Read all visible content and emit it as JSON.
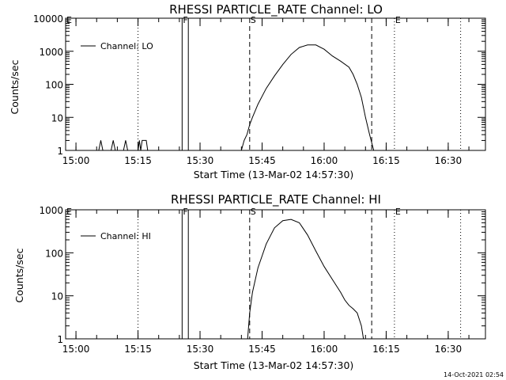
{
  "footer": {
    "timestamp": "14-Oct-2021 02:54"
  },
  "chart_data": [
    {
      "type": "line",
      "title": "RHESSI PARTICLE_RATE Channel: LO",
      "xlabel": "Start Time (13-Mar-02 14:57:30)",
      "ylabel": "Counts/sec",
      "yscale": "log",
      "ylim": [
        1,
        10000
      ],
      "yticks": [
        1,
        10,
        100,
        1000,
        10000
      ],
      "ytick_labels": [
        "1",
        "10",
        "100",
        "1000",
        "10000"
      ],
      "xlim": [
        "14:57:30",
        "16:39:00"
      ],
      "xticks": [
        "15:00",
        "15:15",
        "15:30",
        "15:45",
        "16:00",
        "16:15",
        "16:30"
      ],
      "legend": {
        "label": "Channel: LO",
        "placement": "top-left"
      },
      "markers": [
        {
          "label": "E",
          "time": "14:57:30",
          "style": "dotted"
        },
        {
          "label": "",
          "time": "15:15:00",
          "style": "dotted"
        },
        {
          "label": "F",
          "time": "15:25:40",
          "style": "solid"
        },
        {
          "label": "",
          "time": "15:27:10",
          "style": "solid"
        },
        {
          "label": "S",
          "time": "15:42:00",
          "style": "dashed"
        },
        {
          "label": "",
          "time": "16:11:30",
          "style": "dashed"
        },
        {
          "label": "E",
          "time": "16:17:00",
          "style": "dotted"
        },
        {
          "label": "",
          "time": "16:33:00",
          "style": "dotted"
        }
      ],
      "series": [
        {
          "name": "Channel: LO",
          "points": [
            [
              "15:05:30",
              1
            ],
            [
              "15:06:00",
              2
            ],
            [
              "15:06:30",
              1
            ],
            [
              "15:08:30",
              1
            ],
            [
              "15:09:00",
              2
            ],
            [
              "15:09:30",
              1
            ],
            [
              "15:11:30",
              1
            ],
            [
              "15:12:00",
              2
            ],
            [
              "15:12:30",
              1
            ],
            [
              "15:15:00",
              1
            ],
            [
              "15:15:20",
              2
            ],
            [
              "15:15:40",
              1
            ],
            [
              "15:16:00",
              2
            ],
            [
              "15:17:00",
              2
            ],
            [
              "15:17:20",
              1
            ],
            [
              "15:40:00",
              1
            ],
            [
              "15:40:40",
              2
            ],
            [
              "15:41:20",
              3
            ],
            [
              "15:42:00",
              6
            ],
            [
              "15:42:40",
              10
            ],
            [
              "15:44:00",
              25
            ],
            [
              "15:46:00",
              75
            ],
            [
              "15:48:00",
              180
            ],
            [
              "15:50:00",
              400
            ],
            [
              "15:52:00",
              800
            ],
            [
              "15:54:00",
              1300
            ],
            [
              "15:56:00",
              1550
            ],
            [
              "15:58:00",
              1550
            ],
            [
              "16:00:00",
              1150
            ],
            [
              "16:02:00",
              720
            ],
            [
              "16:04:00",
              500
            ],
            [
              "16:06:00",
              330
            ],
            [
              "16:07:00",
              200
            ],
            [
              "16:08:00",
              100
            ],
            [
              "16:09:00",
              40
            ],
            [
              "16:10:00",
              10
            ],
            [
              "16:11:00",
              3
            ],
            [
              "16:12:00",
              1
            ]
          ]
        }
      ]
    },
    {
      "type": "line",
      "title": "RHESSI PARTICLE_RATE Channel: HI",
      "xlabel": "Start Time (13-Mar-02 14:57:30)",
      "ylabel": "Counts/sec",
      "yscale": "log",
      "ylim": [
        1,
        1000
      ],
      "yticks": [
        1,
        10,
        100,
        1000
      ],
      "ytick_labels": [
        "1",
        "10",
        "100",
        "1000"
      ],
      "xlim": [
        "14:57:30",
        "16:39:00"
      ],
      "xticks": [
        "15:00",
        "15:15",
        "15:30",
        "15:45",
        "16:00",
        "16:15",
        "16:30"
      ],
      "legend": {
        "label": "Channel: HI",
        "placement": "top-left"
      },
      "markers": [
        {
          "label": "E",
          "time": "14:57:30",
          "style": "dotted"
        },
        {
          "label": "",
          "time": "15:15:00",
          "style": "dotted"
        },
        {
          "label": "F",
          "time": "15:25:40",
          "style": "solid"
        },
        {
          "label": "",
          "time": "15:27:10",
          "style": "solid"
        },
        {
          "label": "S",
          "time": "15:42:00",
          "style": "dashed"
        },
        {
          "label": "",
          "time": "16:11:30",
          "style": "dashed"
        },
        {
          "label": "E",
          "time": "16:17:00",
          "style": "dotted"
        },
        {
          "label": "",
          "time": "16:33:00",
          "style": "dotted"
        }
      ],
      "series": [
        {
          "name": "Channel: HI",
          "points": [
            [
              "15:41:30",
              1
            ],
            [
              "15:42:00",
              4
            ],
            [
              "15:42:40",
              12
            ],
            [
              "15:44:00",
              45
            ],
            [
              "15:46:00",
              160
            ],
            [
              "15:48:00",
              380
            ],
            [
              "15:50:00",
              560
            ],
            [
              "15:52:00",
              600
            ],
            [
              "15:54:00",
              500
            ],
            [
              "15:56:00",
              260
            ],
            [
              "15:58:00",
              110
            ],
            [
              "16:00:00",
              48
            ],
            [
              "16:02:00",
              24
            ],
            [
              "16:04:00",
              12
            ],
            [
              "16:05:00",
              8
            ],
            [
              "16:06:00",
              6
            ],
            [
              "16:07:00",
              5
            ],
            [
              "16:08:00",
              4
            ],
            [
              "16:09:00",
              2
            ],
            [
              "16:09:30",
              1
            ]
          ]
        }
      ]
    }
  ]
}
